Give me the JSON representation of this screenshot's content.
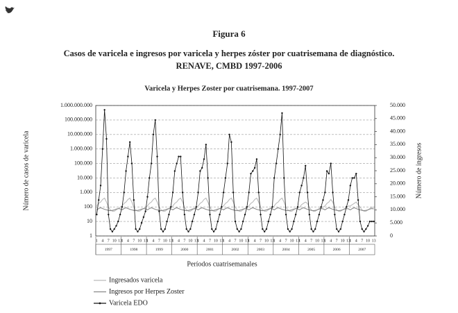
{
  "figure": {
    "label": "Figura 6",
    "caption_lines": [
      "Casos de varicela e ingresos por varicela y herpes zóster por cuatrisemana de diagnóstico.",
      "RENAVE, CMBD 1997-2006"
    ]
  },
  "chart_data": {
    "type": "line",
    "title": "Varicela y Herpes Zoster por cuatrisemana. 1997-2007",
    "y_label": "Número de casos de varicela",
    "y2_label": "Número de ingresos",
    "x_label": "Períodos cuatrisemanales",
    "log_y": true,
    "grid": true,
    "groups": [
      "1997",
      "1998",
      "1999",
      "2000",
      "2001",
      "2002",
      "2003",
      "2004",
      "2005",
      "2006",
      "2007"
    ],
    "categories": [
      "1",
      null,
      null,
      "4",
      null,
      null,
      "7",
      null,
      null,
      "10",
      null,
      null,
      "13",
      "1",
      null,
      null,
      "4",
      null,
      null,
      "7",
      null,
      null,
      "10",
      null,
      null,
      "13",
      "1",
      null,
      null,
      "4",
      null,
      null,
      "7",
      null,
      null,
      "10",
      null,
      null,
      "13",
      "1",
      null,
      null,
      "4",
      null,
      null,
      "7",
      null,
      null,
      "10",
      null,
      null,
      "13",
      "1",
      null,
      null,
      "4",
      null,
      null,
      "7",
      null,
      null,
      "10",
      null,
      null,
      "13",
      "1",
      null,
      null,
      "4",
      null,
      null,
      "7",
      null,
      null,
      "10",
      null,
      null,
      "13",
      "1",
      null,
      null,
      "4",
      null,
      null,
      "7",
      null,
      null,
      "10",
      null,
      null,
      "13",
      "1",
      null,
      null,
      "4",
      null,
      null,
      "7",
      null,
      null,
      "10",
      null,
      null,
      "13",
      "1",
      null,
      null,
      "4",
      null,
      null,
      "7",
      null,
      null,
      "10",
      null,
      null,
      "13",
      "1",
      null,
      null,
      "4",
      null,
      null,
      "7",
      null,
      null,
      "10",
      null,
      null,
      "13",
      "1",
      null,
      null,
      "4",
      null,
      null,
      "7",
      null,
      null,
      "10",
      null,
      null,
      "13"
    ],
    "ylim": [
      1,
      1000000000
    ],
    "yticks": [
      1,
      10,
      100,
      {
        "value": 1000,
        "label": "1.000"
      },
      {
        "value": 10000,
        "label": "10.000"
      },
      {
        "value": 100000,
        "label": "100.000"
      },
      {
        "value": 1000000,
        "label": "1.000.000"
      },
      {
        "value": 10000000,
        "label": "10.000.000"
      },
      {
        "value": 100000000,
        "label": "100.000.000"
      },
      {
        "value": 1000000000,
        "label": "1.000.000.000"
      }
    ],
    "y2lim": [
      0,
      50000
    ],
    "y2ticks": [
      0,
      {
        "value": 5000,
        "label": "5.000"
      },
      {
        "value": 10000,
        "label": "10.000"
      },
      {
        "value": 15000,
        "label": "15.000"
      },
      {
        "value": 20000,
        "label": "20.000"
      },
      {
        "value": 25000,
        "label": "25.000"
      },
      {
        "value": 30000,
        "label": "30.000"
      },
      {
        "value": 35000,
        "label": "35.000"
      },
      {
        "value": 40000,
        "label": "40.000"
      },
      {
        "value": 45000,
        "label": "45.000"
      },
      {
        "value": 50000,
        "label": "50.000"
      }
    ],
    "series": [
      {
        "name": "Ingresados varicela",
        "color": "#bbbbbb",
        "axis": "y2",
        "markers": false,
        "values": [
          11500,
          12500,
          13000,
          14000,
          14500,
          13000,
          11000,
          10000,
          9500,
          9500,
          10000,
          10500,
          11000,
          11500,
          12500,
          13000,
          14000,
          14500,
          13000,
          11000,
          10000,
          9500,
          9500,
          10000,
          10500,
          11000,
          11500,
          12500,
          13000,
          14000,
          14500,
          13000,
          11000,
          10000,
          9500,
          9500,
          10000,
          10500,
          11000,
          11500,
          12500,
          13000,
          14000,
          14500,
          13000,
          11000,
          10000,
          9500,
          9500,
          10000,
          10500,
          11000,
          11500,
          12500,
          13000,
          14000,
          14500,
          13000,
          11000,
          10000,
          9500,
          9500,
          10000,
          10500,
          11000,
          11500,
          12500,
          13000,
          14000,
          14500,
          13000,
          11000,
          10000,
          9500,
          9500,
          10000,
          10500,
          11000,
          11500,
          12500,
          13000,
          14000,
          14500,
          13000,
          11000,
          10000,
          9500,
          9500,
          10000,
          10500,
          11000,
          11500,
          12500,
          13000,
          14000,
          14500,
          13000,
          11000,
          10000,
          9500,
          9500,
          10000,
          10500,
          11000,
          11000,
          12000,
          12500,
          13000,
          12500,
          11000,
          10000,
          9500,
          9500,
          10000,
          10500,
          11000,
          11000,
          11500,
          12500,
          13000,
          14000,
          13000,
          11000,
          10000,
          9500,
          9500,
          10000,
          10500,
          11000,
          11500,
          11500,
          12000,
          12500,
          13000,
          12000,
          11000,
          10000,
          9500,
          9500,
          10000,
          10500,
          11000,
          11000
        ]
      },
      {
        "name": "Ingresos por Herpes Zoster",
        "color": "#888888",
        "axis": "y2",
        "markers": false,
        "values": [
          10000,
          10500,
          10800,
          10500,
          10200,
          10000,
          9800,
          9700,
          9800,
          10000,
          10300,
          10500,
          10400,
          10000,
          10500,
          10800,
          10500,
          10200,
          10000,
          9800,
          9700,
          9800,
          10000,
          10300,
          10500,
          10400,
          10000,
          10500,
          10800,
          10500,
          10200,
          10000,
          9800,
          9700,
          9800,
          10000,
          10300,
          10500,
          10400,
          10000,
          10500,
          10800,
          10500,
          10200,
          10000,
          9800,
          9700,
          9800,
          10000,
          10300,
          10500,
          10400,
          10000,
          10500,
          10800,
          10500,
          10200,
          10000,
          9800,
          9700,
          9800,
          10000,
          10300,
          10500,
          10400,
          10000,
          10500,
          10800,
          10500,
          10200,
          10000,
          9800,
          9700,
          9800,
          10000,
          10300,
          10500,
          10400,
          10000,
          10500,
          10800,
          10500,
          10200,
          10000,
          9800,
          9700,
          9800,
          10000,
          10300,
          10500,
          10400,
          10000,
          10500,
          10800,
          10500,
          10200,
          10000,
          9800,
          9700,
          9800,
          10000,
          10300,
          10500,
          10400,
          10000,
          10500,
          10800,
          10500,
          10200,
          10000,
          9800,
          9700,
          9800,
          10000,
          10300,
          10500,
          10400,
          10000,
          10500,
          10800,
          10500,
          10200,
          10000,
          9800,
          9700,
          9800,
          10000,
          10300,
          10500,
          10400,
          10000,
          10500,
          10800,
          10500,
          10200,
          10000,
          9800,
          9700,
          9800,
          10000,
          10300,
          10500,
          10400
        ]
      },
      {
        "name": "Varicela EDO",
        "color": "#111111",
        "axis": "y",
        "markers": true,
        "values": [
          30,
          300,
          3000,
          1000000,
          500000000,
          5000000,
          30,
          3,
          2,
          3,
          5,
          10,
          30,
          100,
          1000,
          30000,
          300000,
          3000000,
          100000,
          300,
          3,
          2,
          3,
          8,
          20,
          50,
          500,
          10000,
          100000,
          10000000,
          100000000,
          300000,
          50,
          3,
          2,
          3,
          10,
          30,
          100,
          1000,
          30000,
          100000,
          300000,
          300000,
          1000,
          30,
          3,
          2,
          3,
          10,
          30,
          100,
          1000,
          30000,
          50000,
          200000,
          2000000,
          10000,
          30,
          3,
          2,
          3,
          10,
          30,
          100,
          1000,
          10000,
          100000,
          10000000,
          3000000,
          1000,
          10,
          3,
          2,
          3,
          10,
          30,
          100,
          1000,
          20000,
          30000,
          50000,
          200000,
          1000,
          30,
          3,
          2,
          3,
          10,
          30,
          100,
          10000,
          100000,
          1000000,
          10000000,
          300000000,
          10000,
          30,
          3,
          2,
          3,
          10,
          30,
          100,
          1000,
          3000,
          10000,
          70000,
          1000,
          30,
          3,
          2,
          3,
          10,
          30,
          100,
          300,
          1000,
          30000,
          20000,
          100000,
          1000,
          30,
          3,
          2,
          3,
          10,
          30,
          100,
          300,
          3000,
          10000,
          10000,
          20000,
          300,
          10,
          3,
          2,
          3,
          5,
          10,
          10,
          10
        ]
      }
    ]
  }
}
